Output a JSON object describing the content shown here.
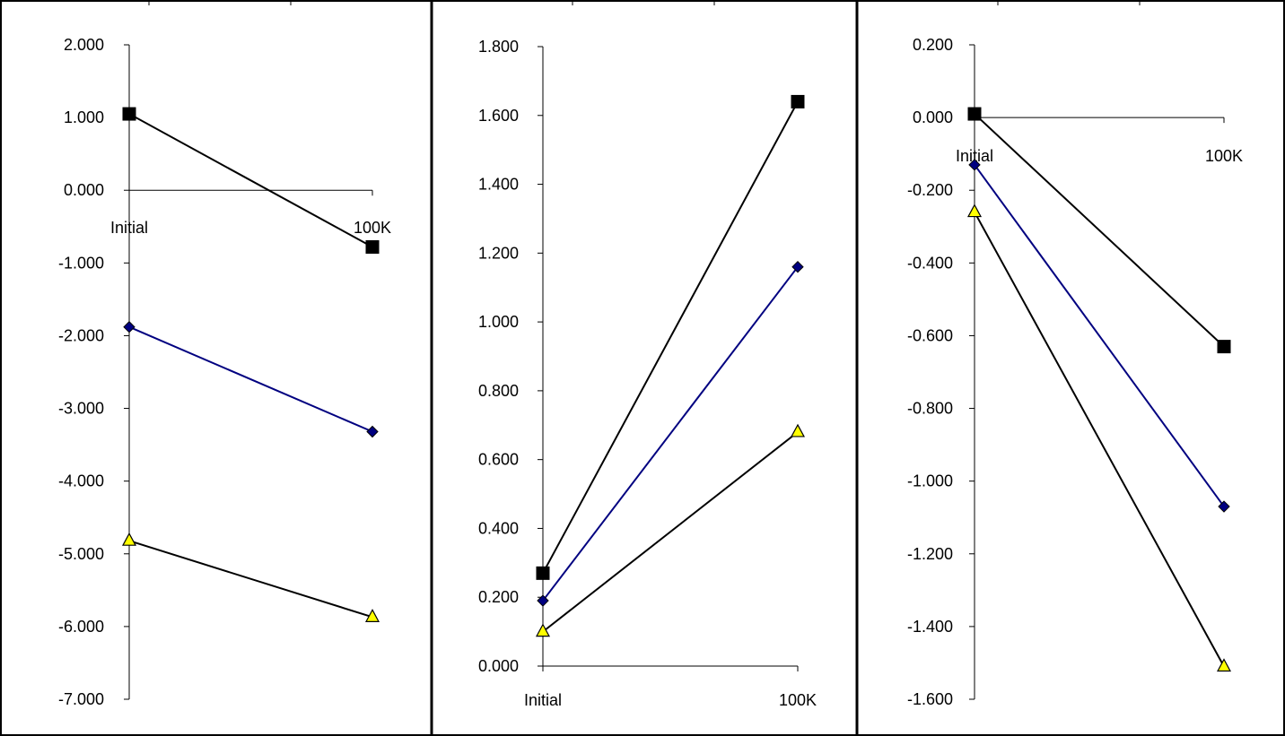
{
  "chart_data": [
    {
      "type": "line",
      "categories": [
        "Initial",
        "100K"
      ],
      "ylim": [
        -7,
        2
      ],
      "ytick_step": 1,
      "yticks": [
        "2.000",
        "1.000",
        "0.000",
        "-1.000",
        "-2.000",
        "-3.000",
        "-4.000",
        "-5.000",
        "-6.000",
        "-7.000"
      ],
      "series": [
        {
          "marker": "square",
          "color": "#000000",
          "fill": "#000000",
          "values": [
            1.05,
            -0.78
          ]
        },
        {
          "marker": "diamond",
          "color": "#000080",
          "fill": "#000080",
          "values": [
            -1.88,
            -3.32
          ]
        },
        {
          "marker": "triangle",
          "color": "#000000",
          "fill": "#ffff00",
          "values": [
            -4.82,
            -5.87
          ]
        }
      ],
      "grid": false,
      "legend": "none"
    },
    {
      "type": "line",
      "categories": [
        "Initial",
        "100K"
      ],
      "ylim": [
        0,
        1.8
      ],
      "ytick_step": 0.2,
      "yticks": [
        "1.800",
        "1.600",
        "1.400",
        "1.200",
        "1.000",
        "0.800",
        "0.600",
        "0.400",
        "0.200",
        "0.000"
      ],
      "series": [
        {
          "marker": "square",
          "color": "#000000",
          "fill": "#000000",
          "values": [
            0.27,
            1.64
          ]
        },
        {
          "marker": "diamond",
          "color": "#000080",
          "fill": "#000080",
          "values": [
            0.19,
            1.16
          ]
        },
        {
          "marker": "triangle",
          "color": "#000000",
          "fill": "#ffff00",
          "values": [
            0.1,
            0.68
          ]
        }
      ],
      "grid": false,
      "legend": "none"
    },
    {
      "type": "line",
      "categories": [
        "Initial",
        "100K"
      ],
      "ylim": [
        -1.6,
        0.2
      ],
      "ytick_step": 0.2,
      "yticks": [
        "0.200",
        "0.000",
        "-0.200",
        "-0.400",
        "-0.600",
        "-0.800",
        "-1.000",
        "-1.200",
        "-1.400",
        "-1.600"
      ],
      "series": [
        {
          "marker": "square",
          "color": "#000000",
          "fill": "#000000",
          "values": [
            0.01,
            -0.63
          ]
        },
        {
          "marker": "diamond",
          "color": "#000080",
          "fill": "#000080",
          "values": [
            -0.13,
            -1.07
          ]
        },
        {
          "marker": "triangle",
          "color": "#000000",
          "fill": "#ffff00",
          "values": [
            -0.26,
            -1.51
          ]
        }
      ],
      "grid": false,
      "legend": "none"
    }
  ]
}
